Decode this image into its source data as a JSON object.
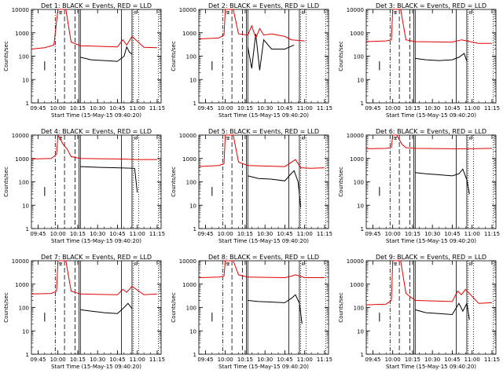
{
  "time_ticks": [
    "09:45",
    "10:00",
    "10:15",
    "10:30",
    "10:45",
    "11:00",
    "11:15"
  ],
  "y_ticks": [
    "1",
    "10",
    "100",
    "1000",
    "10000"
  ],
  "xlabel": "Start Time (15-May-15 09:40:20)",
  "ylabel": "Counts/sec",
  "markers": [
    "S",
    "E",
    "L",
    "P",
    "W",
    "D",
    "R",
    "Z"
  ],
  "colors": {
    "events": "#000000",
    "lld": "#e00000"
  },
  "chart_data": [
    {
      "type": "line",
      "title": "Det 1: BLACK = Events, RED = LLD",
      "xlabel": "Start Time (15-May-15 09:40:20)",
      "ylabel": "Counts/sec",
      "x_ticks": [
        "09:45",
        "10:00",
        "10:15",
        "10:30",
        "10:45",
        "11:00",
        "11:15"
      ],
      "yscale": "log",
      "ylim": [
        1,
        10000
      ],
      "series": [
        {
          "legend": "Events",
          "color": "#000000",
          "x": [
            "10:17",
            "10:25",
            "10:35",
            "10:45",
            "10:50",
            "10:52",
            "10:54",
            "10:56"
          ],
          "y": [
            90,
            70,
            65,
            60,
            100,
            250,
            150,
            120
          ]
        },
        {
          "legend": "LLD",
          "color": "#e00000",
          "x": [
            "09:40",
            "09:50",
            "09:57",
            "10:00",
            "10:06",
            "10:10",
            "10:17",
            "10:45",
            "10:49",
            "10:52",
            "10:56",
            "11:05",
            "11:15"
          ],
          "y": [
            200,
            230,
            300,
            10000,
            10000,
            400,
            280,
            250,
            500,
            300,
            700,
            240,
            230
          ]
        }
      ]
    },
    {
      "type": "line",
      "title": "Det 2: BLACK = Events, RED = LLD",
      "xlabel": "Start Time (15-May-15 09:40:20)",
      "ylabel": "Counts/sec",
      "x_ticks": [
        "09:45",
        "10:00",
        "10:15",
        "10:30",
        "10:45",
        "11:00",
        "11:15"
      ],
      "yscale": "log",
      "ylim": [
        1,
        10000
      ],
      "series": [
        {
          "legend": "Events",
          "color": "#000000",
          "x": [
            "10:17",
            "10:20",
            "10:23",
            "10:26",
            "10:29",
            "10:35",
            "10:45",
            "10:52"
          ],
          "y": [
            250,
            30,
            900,
            25,
            500,
            200,
            200,
            300
          ]
        },
        {
          "legend": "LLD",
          "color": "#e00000",
          "x": [
            "09:40",
            "09:55",
            "09:59",
            "10:00",
            "10:06",
            "10:10",
            "10:17",
            "10:20",
            "10:23",
            "10:26",
            "10:29",
            "10:35",
            "10:45",
            "10:50",
            "11:00"
          ],
          "y": [
            550,
            600,
            800,
            10000,
            10000,
            900,
            800,
            2000,
            600,
            1500,
            800,
            900,
            700,
            500,
            450
          ]
        }
      ]
    },
    {
      "type": "line",
      "title": "Det 3: BLACK = Events, RED = LLD",
      "xlabel": "Start Time (15-May-15 09:40:20)",
      "ylabel": "Counts/sec",
      "x_ticks": [
        "09:45",
        "10:00",
        "10:15",
        "10:30",
        "10:45",
        "11:00",
        "11:15"
      ],
      "yscale": "log",
      "ylim": [
        1,
        10000
      ],
      "series": [
        {
          "legend": "Events",
          "color": "#000000",
          "x": [
            "10:17",
            "10:25",
            "10:35",
            "10:45",
            "10:50",
            "10:54",
            "10:56"
          ],
          "y": [
            80,
            70,
            65,
            70,
            90,
            130,
            60
          ]
        },
        {
          "legend": "LLD",
          "color": "#e00000",
          "x": [
            "09:40",
            "09:55",
            "09:59",
            "10:00",
            "10:06",
            "10:10",
            "10:17",
            "10:45",
            "10:52",
            "10:56",
            "11:05",
            "11:15"
          ],
          "y": [
            420,
            450,
            500,
            10000,
            10000,
            500,
            420,
            400,
            500,
            450,
            350,
            350
          ]
        }
      ]
    },
    {
      "type": "line",
      "title": "Det 4: BLACK = Events, RED = LLD",
      "xlabel": "Start Time (15-May-15 09:40:20)",
      "ylabel": "Counts/sec",
      "x_ticks": [
        "09:45",
        "10:00",
        "10:15",
        "10:30",
        "10:45",
        "11:00",
        "11:15"
      ],
      "yscale": "log",
      "ylim": [
        1,
        10000
      ],
      "series": [
        {
          "legend": "Events",
          "color": "#000000",
          "x": [
            "10:17",
            "10:30",
            "10:45",
            "10:58",
            "11:00"
          ],
          "y": [
            450,
            420,
            400,
            380,
            35
          ]
        },
        {
          "legend": "LLD",
          "color": "#e00000",
          "x": [
            "09:40",
            "09:55",
            "09:59",
            "10:00",
            "10:04",
            "10:07",
            "10:10",
            "10:17",
            "10:45",
            "11:00",
            "11:15"
          ],
          "y": [
            950,
            1000,
            1500,
            10000,
            4000,
            2500,
            1200,
            1000,
            950,
            900,
            900
          ]
        }
      ]
    },
    {
      "type": "line",
      "title": "Det 5: BLACK = Events, RED = LLD",
      "xlabel": "Start Time (15-May-15 09:40:20)",
      "ylabel": "Counts/sec",
      "x_ticks": [
        "09:45",
        "10:00",
        "10:15",
        "10:30",
        "10:45",
        "11:00",
        "11:15"
      ],
      "yscale": "log",
      "ylim": [
        1,
        10000
      ],
      "series": [
        {
          "legend": "Events",
          "color": "#000000",
          "x": [
            "10:17",
            "10:25",
            "10:35",
            "10:45",
            "10:49",
            "10:52",
            "10:55",
            "10:57"
          ],
          "y": [
            180,
            140,
            130,
            110,
            200,
            300,
            100,
            8
          ]
        },
        {
          "legend": "LLD",
          "color": "#e00000",
          "x": [
            "09:40",
            "09:55",
            "09:59",
            "10:00",
            "10:06",
            "10:10",
            "10:17",
            "10:45",
            "10:50",
            "10:53",
            "10:57",
            "11:05",
            "11:15"
          ],
          "y": [
            450,
            500,
            600,
            10000,
            10000,
            700,
            500,
            450,
            700,
            900,
            400,
            380,
            400
          ]
        }
      ]
    },
    {
      "type": "line",
      "title": "Det 6: BLACK = Events, RED = LLD",
      "xlabel": "Start Time (15-May-15 09:40:20)",
      "ylabel": "Counts/sec",
      "x_ticks": [
        "09:45",
        "10:00",
        "10:15",
        "10:30",
        "10:45",
        "11:00",
        "11:15"
      ],
      "yscale": "log",
      "ylim": [
        1,
        10000
      ],
      "series": [
        {
          "legend": "Events",
          "color": "#000000",
          "x": [
            "10:17",
            "10:25",
            "10:35",
            "10:45",
            "10:50",
            "10:53",
            "10:56",
            "10:58"
          ],
          "y": [
            250,
            220,
            200,
            180,
            220,
            350,
            120,
            30
          ]
        },
        {
          "legend": "LLD",
          "color": "#e00000",
          "x": [
            "09:40",
            "09:55",
            "09:59",
            "10:00",
            "10:03",
            "10:07",
            "10:10",
            "10:17",
            "10:45",
            "11:00",
            "11:15"
          ],
          "y": [
            2600,
            2700,
            3000,
            10000,
            10000,
            4000,
            2900,
            2700,
            2600,
            2600,
            2700
          ]
        }
      ]
    },
    {
      "type": "line",
      "title": "Det 7: BLACK = Events, RED = LLD",
      "xlabel": "Start Time (15-May-15 09:40:20)",
      "ylabel": "Counts/sec",
      "x_ticks": [
        "09:45",
        "10:00",
        "10:15",
        "10:30",
        "10:45",
        "11:00",
        "11:15"
      ],
      "yscale": "log",
      "ylim": [
        1,
        10000
      ],
      "series": [
        {
          "legend": "Events",
          "color": "#000000",
          "x": [
            "10:17",
            "10:25",
            "10:35",
            "10:45",
            "10:50",
            "10:53",
            "10:56"
          ],
          "y": [
            80,
            70,
            60,
            55,
            100,
            150,
            90
          ]
        },
        {
          "legend": "LLD",
          "color": "#e00000",
          "x": [
            "09:40",
            "09:55",
            "09:59",
            "10:00",
            "10:06",
            "10:10",
            "10:17",
            "10:45",
            "10:49",
            "10:52",
            "10:56",
            "11:05",
            "11:15"
          ],
          "y": [
            380,
            400,
            500,
            10000,
            10000,
            500,
            380,
            350,
            600,
            450,
            800,
            350,
            380
          ]
        }
      ]
    },
    {
      "type": "line",
      "title": "Det 8: BLACK = Events, RED = LLD",
      "xlabel": "Start Time (15-May-15 09:40:20)",
      "ylabel": "Counts/sec",
      "x_ticks": [
        "09:45",
        "10:00",
        "10:15",
        "10:30",
        "10:45",
        "11:00",
        "11:15"
      ],
      "yscale": "log",
      "ylim": [
        1,
        10000
      ],
      "series": [
        {
          "legend": "Events",
          "color": "#000000",
          "x": [
            "10:17",
            "10:25",
            "10:35",
            "10:45",
            "10:50",
            "10:53",
            "10:56",
            "10:58"
          ],
          "y": [
            200,
            180,
            170,
            160,
            250,
            350,
            150,
            20
          ]
        },
        {
          "legend": "LLD",
          "color": "#e00000",
          "x": [
            "09:40",
            "09:55",
            "09:59",
            "10:00",
            "10:06",
            "10:10",
            "10:17",
            "10:45",
            "10:50",
            "10:53",
            "11:00",
            "11:15"
          ],
          "y": [
            1900,
            2000,
            2200,
            10000,
            10000,
            2500,
            2000,
            1900,
            2200,
            2500,
            1900,
            1900
          ]
        }
      ]
    },
    {
      "type": "line",
      "title": "Det 9: BLACK = Events, RED = LLD",
      "xlabel": "Start Time (15-May-15 09:40:20)",
      "ylabel": "Counts/sec",
      "x_ticks": [
        "09:45",
        "10:00",
        "10:15",
        "10:30",
        "10:45",
        "11:00",
        "11:15"
      ],
      "yscale": "log",
      "ylim": [
        1,
        10000
      ],
      "series": [
        {
          "legend": "Events",
          "color": "#000000",
          "x": [
            "10:17",
            "10:25",
            "10:35",
            "10:45",
            "10:50",
            "10:53",
            "10:56",
            "10:58"
          ],
          "y": [
            80,
            60,
            55,
            50,
            150,
            70,
            150,
            30
          ]
        },
        {
          "legend": "LLD",
          "color": "#e00000",
          "x": [
            "09:40",
            "09:55",
            "09:59",
            "10:00",
            "10:06",
            "10:10",
            "10:17",
            "10:45",
            "10:49",
            "10:52",
            "10:55",
            "11:05",
            "11:15"
          ],
          "y": [
            130,
            140,
            200,
            10000,
            10000,
            400,
            200,
            180,
            500,
            350,
            600,
            150,
            160
          ]
        }
      ]
    }
  ],
  "vlines": {
    "dashdot": [
      "09:58"
    ],
    "dashed": [
      "10:05",
      "10:13"
    ],
    "solid": [
      "10:16",
      "10:17",
      "10:48",
      "10:56"
    ],
    "dotted": [
      "10:57",
      "11:01",
      "11:16"
    ]
  }
}
